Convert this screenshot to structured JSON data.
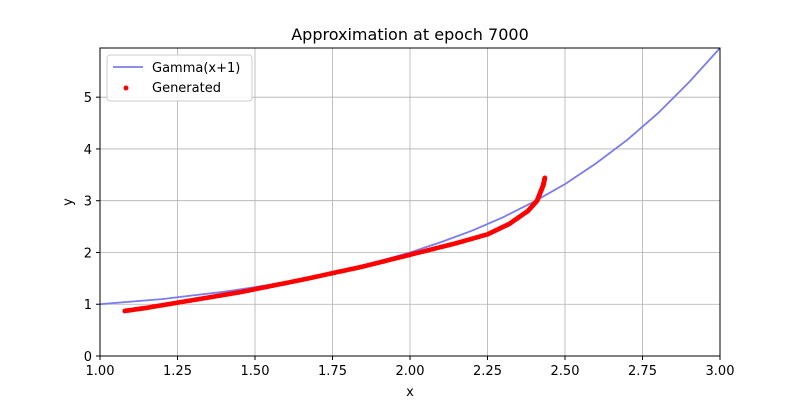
{
  "chart_data": {
    "type": "line",
    "title": "Approximation at epoch 7000",
    "xlabel": "x",
    "ylabel": "y",
    "xlim": [
      1.0,
      3.0
    ],
    "ylim": [
      0,
      5.95
    ],
    "x_ticks": [
      "1.00",
      "1.25",
      "1.50",
      "1.75",
      "2.00",
      "2.25",
      "2.50",
      "2.75",
      "3.00"
    ],
    "y_ticks": [
      "0",
      "1",
      "2",
      "3",
      "4",
      "5"
    ],
    "grid": true,
    "legend_placement": "top-left",
    "series": [
      {
        "name": "Gamma(x+1)",
        "kind": "line",
        "color": "#7b7bf0",
        "x": [
          1.0,
          1.1,
          1.2,
          1.3,
          1.4,
          1.5,
          1.6,
          1.7,
          1.8,
          1.9,
          2.0,
          2.1,
          2.2,
          2.3,
          2.4,
          2.5,
          2.6,
          2.7,
          2.8,
          2.9,
          3.0
        ],
        "y": [
          1.0,
          1.05,
          1.1,
          1.17,
          1.24,
          1.33,
          1.43,
          1.54,
          1.68,
          1.83,
          2.0,
          2.2,
          2.42,
          2.68,
          2.98,
          3.32,
          3.72,
          4.17,
          4.69,
          5.29,
          5.95
        ]
      },
      {
        "name": "Generated",
        "kind": "scatter",
        "color": "#ff0000",
        "x": [
          1.08,
          1.15,
          1.25,
          1.35,
          1.45,
          1.55,
          1.65,
          1.75,
          1.85,
          1.95,
          2.05,
          2.15,
          2.25,
          2.32,
          2.38,
          2.41,
          2.42,
          2.43,
          2.435
        ],
        "y": [
          0.87,
          0.93,
          1.03,
          1.13,
          1.23,
          1.35,
          1.47,
          1.6,
          1.73,
          1.88,
          2.03,
          2.18,
          2.35,
          2.55,
          2.8,
          3.0,
          3.15,
          3.3,
          3.44
        ]
      }
    ]
  }
}
